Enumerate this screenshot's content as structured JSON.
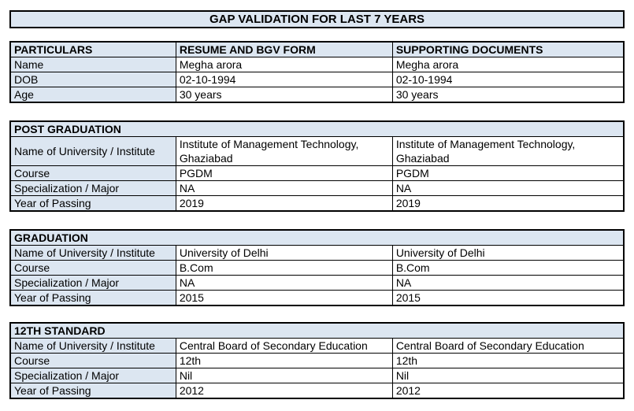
{
  "title": "GAP VALIDATION FOR LAST 7 YEARS",
  "colors": {
    "header_fill": "#dce6f1",
    "border_color": "#000000",
    "text_color": "#000000",
    "page_bg": "#ffffff"
  },
  "particulars_table": {
    "headers": [
      "PARTICULARS",
      "RESUME AND BGV FORM",
      "SUPPORTING DOCUMENTS"
    ],
    "rows": [
      {
        "label": "Name",
        "resume": "Megha arora",
        "supporting": "Megha arora"
      },
      {
        "label": "DOB",
        "resume": "02-10-1994",
        "supporting": "02-10-1994"
      },
      {
        "label": "Age",
        "resume": "30 years",
        "supporting": "30 years"
      }
    ]
  },
  "sections": [
    {
      "title": "POST GRADUATION",
      "rows": [
        {
          "label": "Name of University / Institute",
          "resume": "Institute of Management Technology, Ghaziabad",
          "supporting": "Institute of Management Technology, Ghaziabad"
        },
        {
          "label": "Course",
          "resume": "PGDM",
          "supporting": "PGDM"
        },
        {
          "label": "Specialization / Major",
          "resume": "NA",
          "supporting": "NA"
        },
        {
          "label": "Year of Passing",
          "resume": "2019",
          "supporting": "2019"
        }
      ]
    },
    {
      "title": "GRADUATION",
      "rows": [
        {
          "label": "Name of University / Institute",
          "resume": "University of Delhi",
          "supporting": "University of Delhi"
        },
        {
          "label": "Course",
          "resume": "B.Com",
          "supporting": "B.Com"
        },
        {
          "label": "Specialization / Major",
          "resume": "NA",
          "supporting": "NA"
        },
        {
          "label": "Year of Passing",
          "resume": "2015",
          "supporting": "2015"
        }
      ]
    },
    {
      "title": "12TH STANDARD",
      "rows": [
        {
          "label": "Name of University / Institute",
          "resume": "Central Board of Secondary Education",
          "supporting": "Central Board of Secondary Education"
        },
        {
          "label": "Course",
          "resume": "12th",
          "supporting": "12th"
        },
        {
          "label": "Specialization / Major",
          "resume": "Nil",
          "supporting": "Nil"
        },
        {
          "label": "Year of Passing",
          "resume": "2012",
          "supporting": "2012"
        }
      ]
    }
  ]
}
